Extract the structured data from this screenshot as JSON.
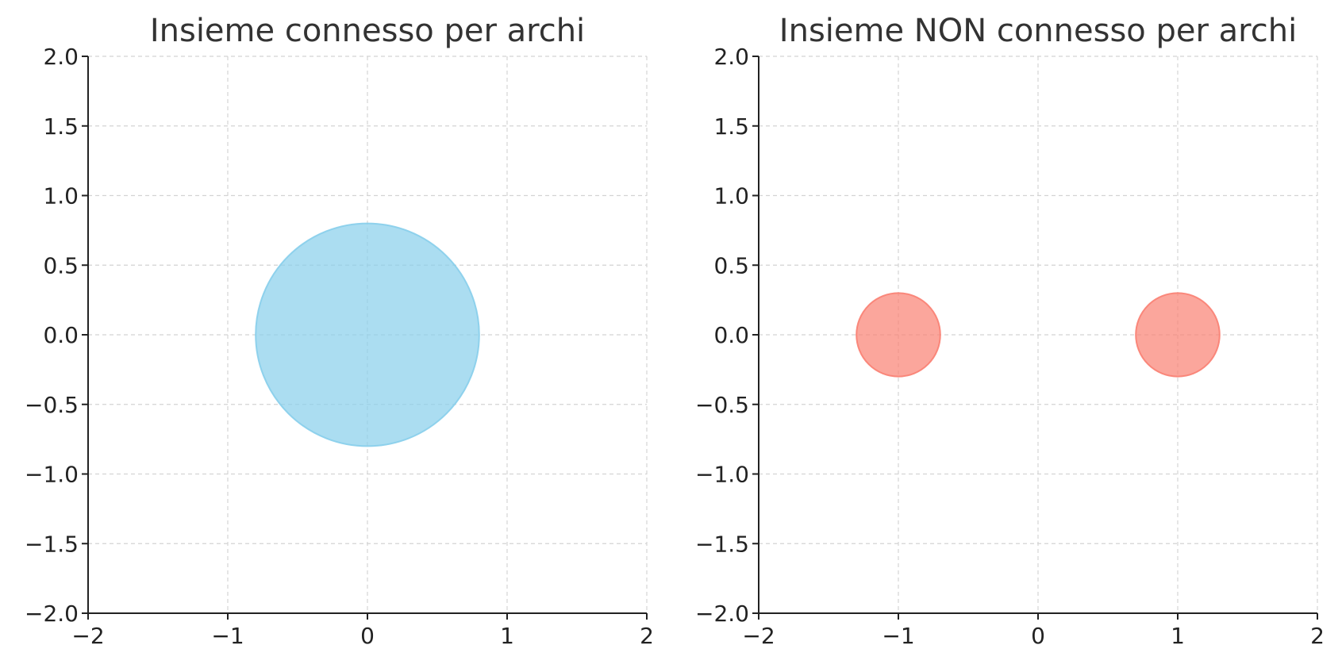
{
  "chart_data": [
    {
      "type": "scatter",
      "title": "Insieme connesso per archi",
      "xlim": [
        -2,
        2
      ],
      "ylim": [
        -2,
        2
      ],
      "xticks": [
        -2,
        -1,
        0,
        1,
        2
      ],
      "yticks": [
        -2.0,
        -1.5,
        -1.0,
        -0.5,
        0.0,
        0.5,
        1.0,
        1.5,
        2.0
      ],
      "xtick_labels": [
        "−2",
        "−1",
        "0",
        "1",
        "2"
      ],
      "ytick_labels": [
        "−2.0",
        "−1.5",
        "−1.0",
        "−0.5",
        "0.0",
        "0.5",
        "1.0",
        "1.5",
        "2.0"
      ],
      "grid": true,
      "shapes": [
        {
          "kind": "circle",
          "cx": 0,
          "cy": 0,
          "r": 0.8,
          "color": "#87ceeb",
          "opacity": 0.7
        }
      ]
    },
    {
      "type": "scatter",
      "title": "Insieme NON connesso per archi",
      "xlim": [
        -2,
        2
      ],
      "ylim": [
        -2,
        2
      ],
      "xticks": [
        -2,
        -1,
        0,
        1,
        2
      ],
      "yticks": [
        -2.0,
        -1.5,
        -1.0,
        -0.5,
        0.0,
        0.5,
        1.0,
        1.5,
        2.0
      ],
      "xtick_labels": [
        "−2",
        "−1",
        "0",
        "1",
        "2"
      ],
      "ytick_labels": [
        "−2.0",
        "−1.5",
        "−1.0",
        "−0.5",
        "0.0",
        "0.5",
        "1.0",
        "1.5",
        "2.0"
      ],
      "grid": true,
      "shapes": [
        {
          "kind": "circle",
          "cx": -1,
          "cy": 0,
          "r": 0.3,
          "color": "#fa8072",
          "opacity": 0.7
        },
        {
          "kind": "circle",
          "cx": 1,
          "cy": 0,
          "r": 0.3,
          "color": "#fa8072",
          "opacity": 0.7
        }
      ]
    }
  ]
}
